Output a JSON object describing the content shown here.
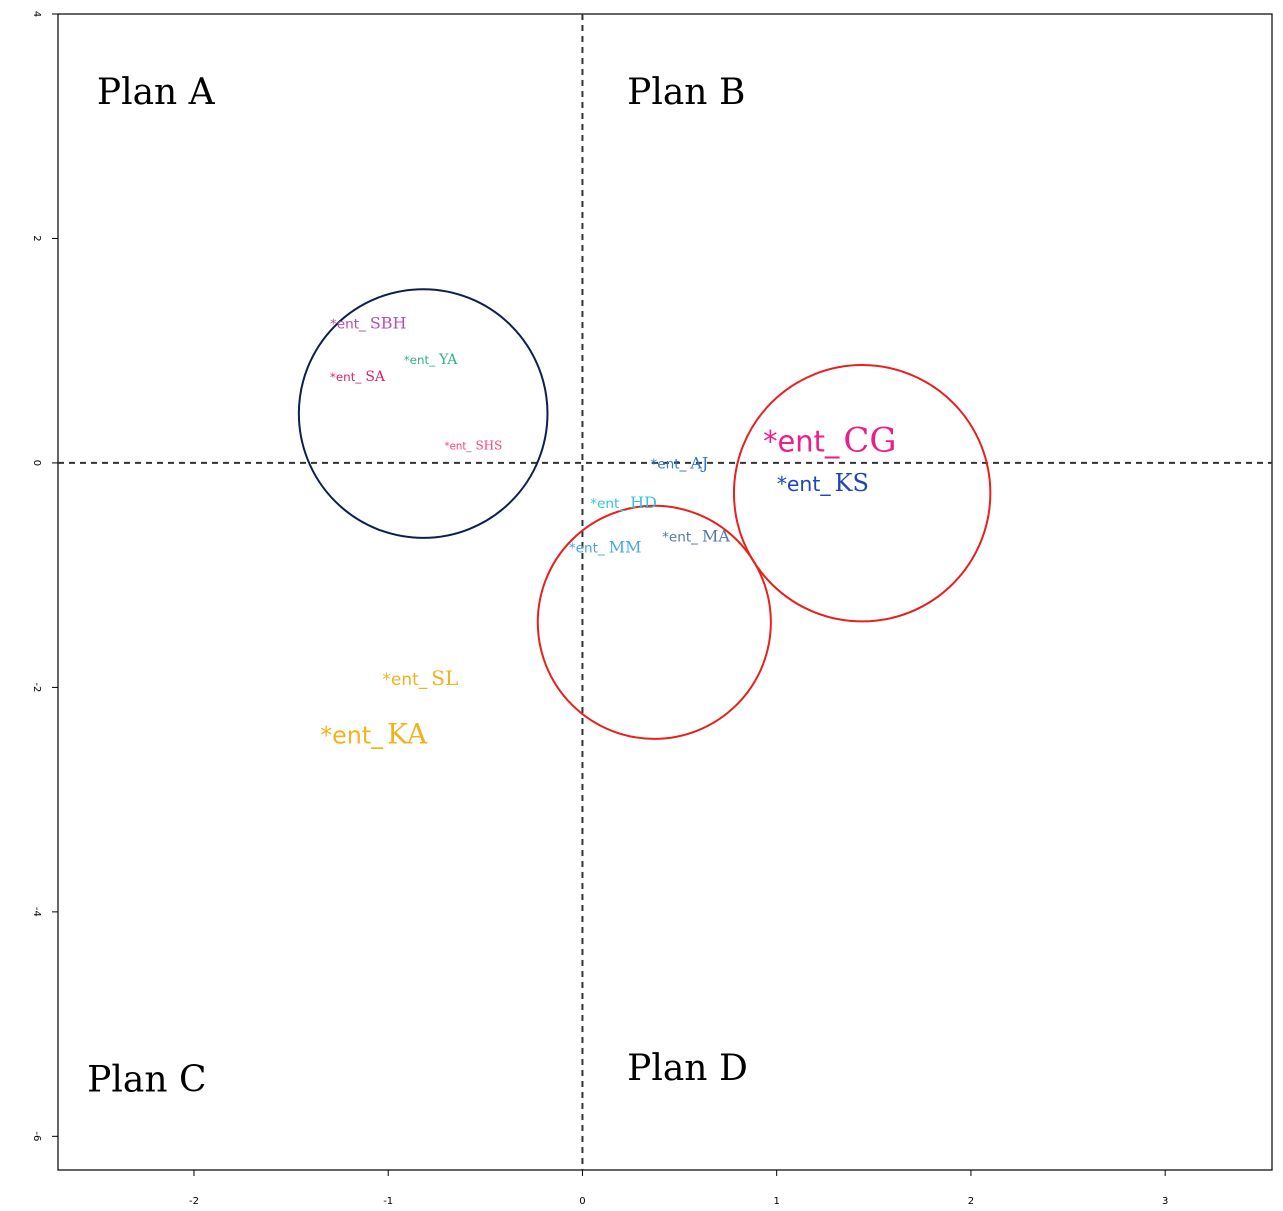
{
  "chart_data": {
    "type": "scatter",
    "title": "",
    "xlabel": "",
    "ylabel": "",
    "xlim": [
      -2.7,
      3.55
    ],
    "ylim": [
      -6.3,
      4.0
    ],
    "grid": false,
    "x_ticks": [
      {
        "value": -2,
        "label": "-2"
      },
      {
        "value": -1,
        "label": "-1"
      },
      {
        "value": 0,
        "label": "0"
      },
      {
        "value": 1,
        "label": "1"
      },
      {
        "value": 2,
        "label": "2"
      },
      {
        "value": 3,
        "label": "3"
      }
    ],
    "y_ticks": [
      {
        "value": 4,
        "label": "4"
      },
      {
        "value": 2,
        "label": "2"
      },
      {
        "value": 0,
        "label": "0"
      },
      {
        "value": -2,
        "label": "-2"
      },
      {
        "value": -4,
        "label": "-4"
      },
      {
        "value": -6,
        "label": "-6"
      }
    ],
    "reference_lines": {
      "x": 0,
      "y": 0,
      "style": "dashed"
    },
    "quadrant_labels": [
      {
        "text": "Plan A",
        "x": -2.5,
        "y": 3.2
      },
      {
        "text": "Plan B",
        "x": 0.23,
        "y": 3.2
      },
      {
        "text": "Plan C",
        "x": -2.55,
        "y": -5.6
      },
      {
        "text": "Plan D",
        "x": 0.23,
        "y": -5.5
      }
    ],
    "points": [
      {
        "prefix": "*ent_",
        "code": "SBH",
        "x": -1.3,
        "y": 1.2,
        "color": "#b44fb2",
        "size": 16
      },
      {
        "prefix": "*ent_",
        "code": "YA",
        "x": -0.92,
        "y": 0.88,
        "color": "#2bb58a",
        "size": 14
      },
      {
        "prefix": "*ent_",
        "code": "SA",
        "x": -1.3,
        "y": 0.73,
        "color": "#e0206c",
        "size": 14
      },
      {
        "prefix": "*ent_",
        "code": "SHS",
        "x": -0.71,
        "y": 0.12,
        "color": "#ff4070",
        "size": 12
      },
      {
        "prefix": "*ent_",
        "code": "CG",
        "x": 0.93,
        "y": 0.1,
        "color": "#ec1e8c",
        "size": 34
      },
      {
        "prefix": "*ent_",
        "code": "KS",
        "x": 1.0,
        "y": -0.25,
        "color": "#1f47b8",
        "size": 24
      },
      {
        "prefix": "*ent_",
        "code": "AJ",
        "x": 0.35,
        "y": -0.05,
        "color": "#2e78d8",
        "size": 16
      },
      {
        "prefix": "*ent_",
        "code": "HD",
        "x": 0.04,
        "y": -0.4,
        "color": "#33c4dc",
        "size": 16
      },
      {
        "prefix": "*ent_",
        "code": "MA",
        "x": 0.41,
        "y": -0.7,
        "color": "#5577aa",
        "size": 16
      },
      {
        "prefix": "*ent_",
        "code": "MM",
        "x": -0.07,
        "y": -0.8,
        "color": "#44a8e6",
        "size": 16
      },
      {
        "prefix": "*ent_",
        "code": "SL",
        "x": -1.03,
        "y": -1.98,
        "color": "#f2b21e",
        "size": 20
      },
      {
        "prefix": "*ent_",
        "code": "KA",
        "x": -1.35,
        "y": -2.5,
        "color": "#f2b21e",
        "size": 28
      }
    ],
    "circles": [
      {
        "cx": -0.82,
        "cy": 0.44,
        "r": 0.64,
        "color": "#0c1f4f"
      },
      {
        "cx": 1.44,
        "cy": -0.27,
        "r": 0.66,
        "color": "#e8201c"
      },
      {
        "cx": 0.37,
        "cy": -1.42,
        "r": 0.6,
        "color": "#e8201c"
      }
    ]
  }
}
